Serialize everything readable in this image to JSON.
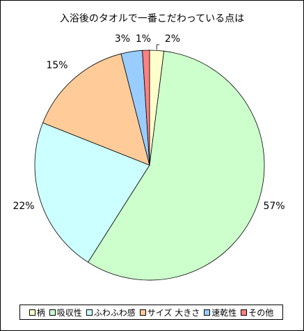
{
  "chart_data": {
    "type": "pie",
    "title": "入浴後のタオルで一番こだわっている点は",
    "categories": [
      "柄",
      "吸収性",
      "ふわふわ感",
      "サイズ 大きさ",
      "速乾性",
      "その他"
    ],
    "values": [
      2,
      57,
      22,
      15,
      3,
      1
    ],
    "value_labels": [
      "2%",
      "57%",
      "22%",
      "15%",
      "3%",
      "1%"
    ],
    "colors": [
      "#FFFFCC",
      "#CCFFCC",
      "#CCFFFF",
      "#FFCC99",
      "#99CCFF",
      "#FF8080"
    ],
    "legend_position": "bottom",
    "start_angle": "12 o'clock",
    "direction": "clockwise"
  }
}
